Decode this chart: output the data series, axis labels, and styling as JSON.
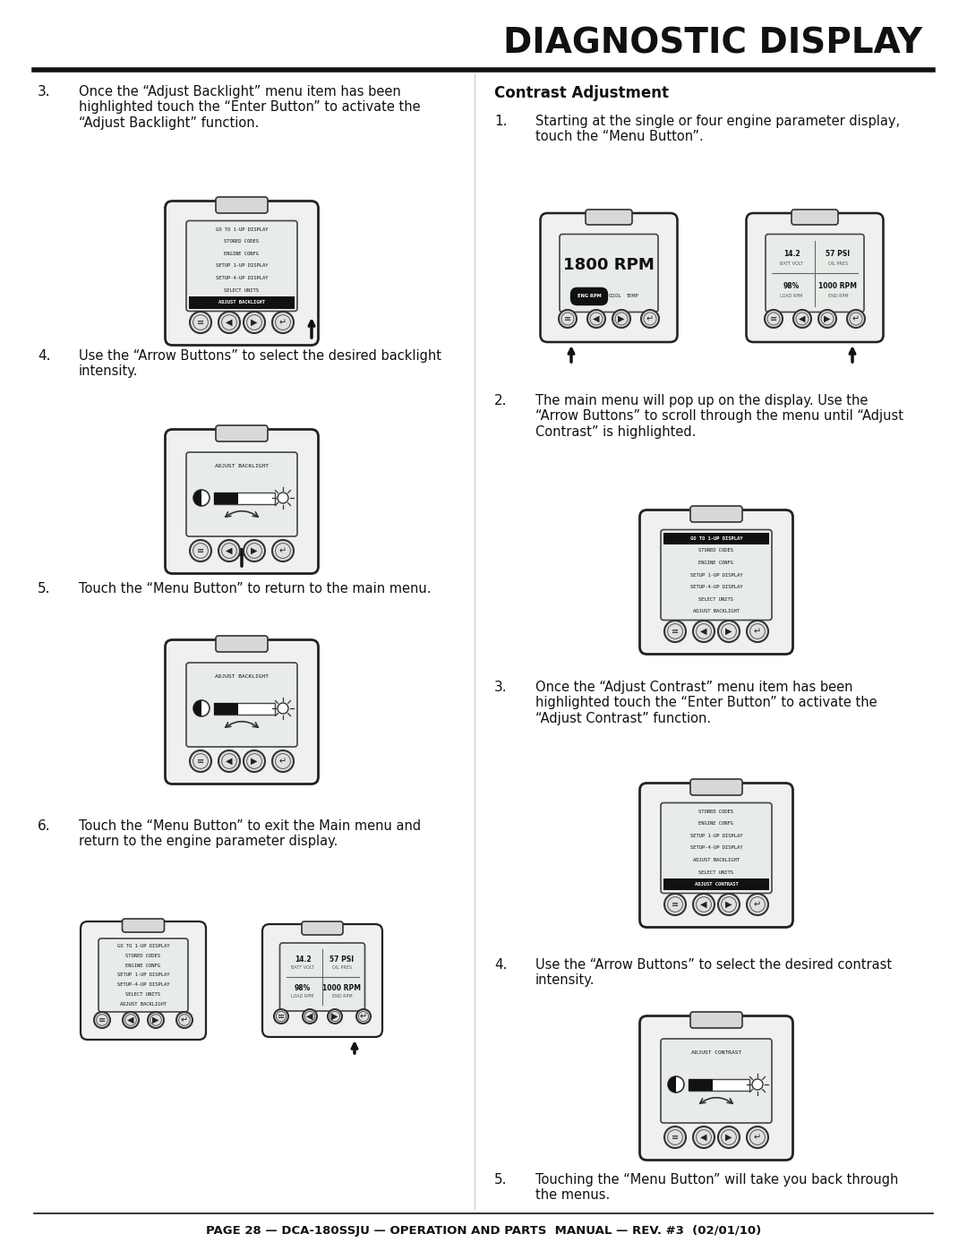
{
  "title": "DIAGNOSTIC DISPLAY",
  "page_footer": "PAGE 28 — DCA-180SSJU — OPERATION AND PARTS  MANUAL — REV. #3  (02/01/10)",
  "bg_color": "#ffffff",
  "text_color": "#111111",
  "menu_backlight": [
    "GO TO 1-UP DISPLAY",
    "STORED CODES",
    "ENGINE CONFG",
    "SETUP 1-UP DISPLAY",
    "SETUP-4-UP DISPLAY",
    "SELECT UNITS",
    "ADJUST BACKLIGHT"
  ],
  "menu_contrast": [
    "STORED CODES",
    "ENGINE CONFG",
    "SETUP 1-UP DISPLAY",
    "SETUP-4-UP DISPLAY",
    "ADJUST BACKLIGHT",
    "SELECT UNITS",
    "ADJUST CONTRAST"
  ],
  "menu_contrast2": [
    "GO TO 1-UP DISPLAY",
    "STORED CODES",
    "ENGINE CONFG",
    "SETUP 1-UP DISPLAY",
    "SETUP-4-UP DISPLAY",
    "SELECT UNITS",
    "ADJUST BACKLIGHT"
  ]
}
